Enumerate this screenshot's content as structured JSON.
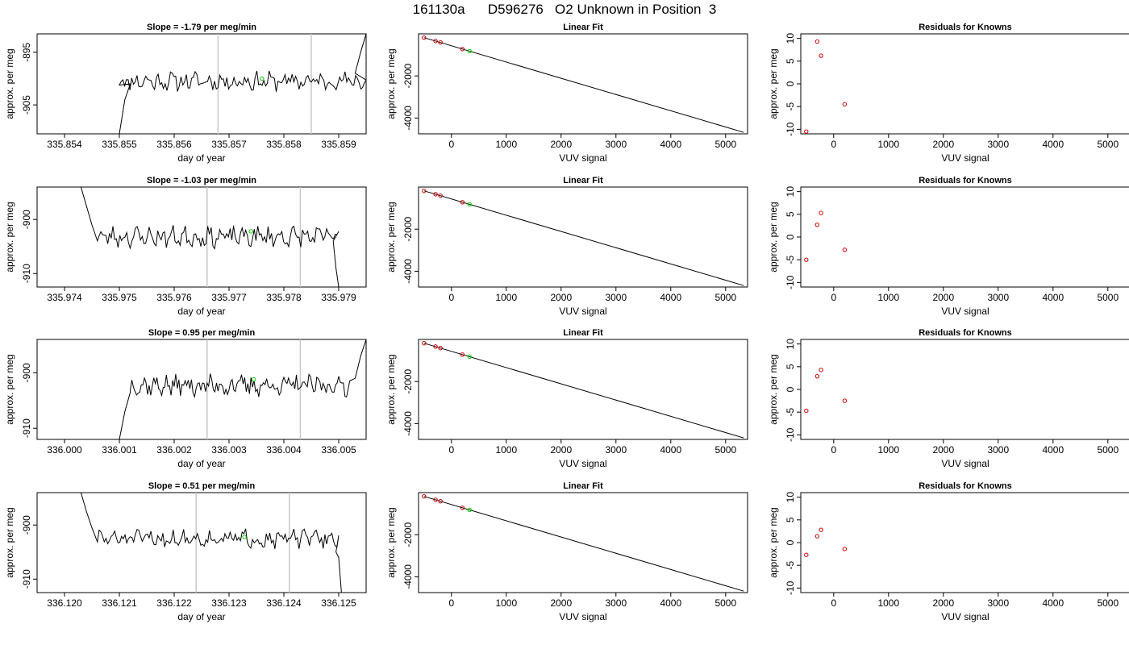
{
  "main_title": "161130a      D596276   O2 Unknown in Position  3",
  "chart_data": [
    {
      "type": "line",
      "panel": "time-series",
      "row": 0,
      "title": "Slope =  -1.79  per meg/min",
      "xlabel": "day of year",
      "ylabel": "approx. per meg",
      "xlim": [
        335.8535,
        335.8595
      ],
      "ylim": [
        -910.5,
        -891.5
      ],
      "xticks": [
        335.854,
        335.855,
        335.856,
        335.857,
        335.858,
        335.859
      ],
      "xtick_labels": [
        "335.854",
        "335.855",
        "335.856",
        "335.857",
        "335.858",
        "335.859"
      ],
      "yticks": [
        -895,
        -905
      ],
      "ytick_labels": [
        "-895",
        "-905"
      ],
      "vlines": [
        335.8568,
        335.8585
      ],
      "series_start": 335.855,
      "series_end": 335.8595,
      "baseline": -900.5,
      "amplitude": 1.4,
      "seed": 11,
      "edge_left": [
        [
          335.855,
          -910.5
        ],
        [
          335.8551,
          -904
        ],
        [
          335.8552,
          -901
        ]
      ],
      "edge_right": [
        [
          335.8593,
          -899
        ],
        [
          335.8594,
          -895
        ],
        [
          335.8595,
          -891.5
        ]
      ],
      "marker": {
        "x": 335.8576,
        "y": -900,
        "color": "#00cc00"
      },
      "grid": false
    },
    {
      "type": "line",
      "panel": "linear-fit",
      "row": 0,
      "title": "Linear Fit",
      "xlabel": "VUV signal",
      "ylabel": "approx. per meg",
      "xlim": [
        -600,
        5400
      ],
      "ylim": [
        -4750,
        0
      ],
      "xticks": [
        0,
        1000,
        2000,
        3000,
        4000,
        5000
      ],
      "xtick_labels": [
        "0",
        "1000",
        "2000",
        "3000",
        "4000",
        "5000"
      ],
      "yticks": [
        -2000,
        -4000
      ],
      "ytick_labels": [
        "-2000",
        "-4000"
      ],
      "fit_line": [
        [
          -500,
          -180
        ],
        [
          5330,
          -4680
        ]
      ],
      "known_points": [
        [
          -500,
          -180
        ],
        [
          -290,
          -340
        ],
        [
          -200,
          -410
        ],
        [
          200,
          -720
        ]
      ],
      "unknown_points": [
        [
          330,
          -820
        ]
      ],
      "grid": false
    },
    {
      "type": "scatter",
      "panel": "residuals",
      "row": 0,
      "title": "Residuals for Knowns",
      "xlabel": "VUV signal",
      "ylabel": "approx. per meg",
      "xlim": [
        -600,
        5400
      ],
      "ylim": [
        -11,
        11
      ],
      "xticks": [
        0,
        1000,
        2000,
        3000,
        4000,
        5000
      ],
      "xtick_labels": [
        "0",
        "1000",
        "2000",
        "3000",
        "4000",
        "5000"
      ],
      "yticks": [
        -10,
        -5,
        0,
        5,
        10
      ],
      "ytick_labels": [
        "-10",
        "-5",
        "0",
        "5",
        "10"
      ],
      "points": [
        [
          -500,
          -10.5
        ],
        [
          -300,
          9.3
        ],
        [
          -230,
          6.2
        ],
        [
          200,
          -4.5
        ]
      ],
      "grid": false
    },
    {
      "type": "line",
      "panel": "time-series",
      "row": 1,
      "title": "Slope =  -1.03  per meg/min",
      "xlabel": "day of year",
      "ylabel": "approx. per meg",
      "xlim": [
        335.9735,
        335.9795
      ],
      "ylim": [
        -912.5,
        -894
      ],
      "xticks": [
        335.974,
        335.975,
        335.976,
        335.977,
        335.978,
        335.979
      ],
      "xtick_labels": [
        "335.974",
        "335.975",
        "335.976",
        "335.977",
        "335.978",
        "335.979"
      ],
      "yticks": [
        -900,
        -910
      ],
      "ytick_labels": [
        "-900",
        "-910"
      ],
      "vlines": [
        335.9766,
        335.9783
      ],
      "series_start": 335.9746,
      "series_end": 335.979,
      "baseline": -903.2,
      "amplitude": 1.5,
      "seed": 23,
      "edge_left": [
        [
          335.9743,
          -894
        ],
        [
          335.9744,
          -897.5
        ],
        [
          335.9745,
          -901
        ]
      ],
      "edge_right": [
        [
          335.9789,
          -904
        ],
        [
          335.97895,
          -909
        ],
        [
          335.979,
          -912.5
        ]
      ],
      "marker": {
        "x": 335.9774,
        "y": -902.2,
        "color": "#00cc00"
      },
      "grid": false
    },
    {
      "type": "line",
      "panel": "linear-fit",
      "row": 1,
      "title": "Linear Fit",
      "xlabel": "VUV signal",
      "ylabel": "approx. per meg",
      "xlim": [
        -600,
        5400
      ],
      "ylim": [
        -4750,
        0
      ],
      "xticks": [
        0,
        1000,
        2000,
        3000,
        4000,
        5000
      ],
      "xtick_labels": [
        "0",
        "1000",
        "2000",
        "3000",
        "4000",
        "5000"
      ],
      "yticks": [
        -2000,
        -4000
      ],
      "ytick_labels": [
        "-2000",
        "-4000"
      ],
      "fit_line": [
        [
          -500,
          -180
        ],
        [
          5330,
          -4680
        ]
      ],
      "known_points": [
        [
          -500,
          -180
        ],
        [
          -290,
          -340
        ],
        [
          -200,
          -410
        ],
        [
          200,
          -720
        ]
      ],
      "unknown_points": [
        [
          330,
          -820
        ]
      ],
      "grid": false
    },
    {
      "type": "scatter",
      "panel": "residuals",
      "row": 1,
      "title": "Residuals for Knowns",
      "xlabel": "VUV signal",
      "ylabel": "approx. per meg",
      "xlim": [
        -600,
        5400
      ],
      "ylim": [
        -11,
        11
      ],
      "xticks": [
        0,
        1000,
        2000,
        3000,
        4000,
        5000
      ],
      "xtick_labels": [
        "0",
        "1000",
        "2000",
        "3000",
        "4000",
        "5000"
      ],
      "yticks": [
        -10,
        -5,
        0,
        5,
        10
      ],
      "ytick_labels": [
        "-10",
        "-5",
        "0",
        "5",
        "10"
      ],
      "points": [
        [
          -500,
          -5
        ],
        [
          -300,
          2.7
        ],
        [
          -230,
          5.3
        ],
        [
          200,
          -2.8
        ]
      ],
      "grid": false
    },
    {
      "type": "line",
      "panel": "time-series",
      "row": 2,
      "title": "Slope =  0.95  per meg/min",
      "xlabel": "day of year",
      "ylabel": "approx. per meg",
      "xlim": [
        335.9995,
        336.0055
      ],
      "ylim": [
        -912,
        -894
      ],
      "xticks": [
        336.0,
        336.001,
        336.002,
        336.003,
        336.004,
        336.005
      ],
      "xtick_labels": [
        "336.000",
        "336.001",
        "336.002",
        "336.003",
        "336.004",
        "336.005"
      ],
      "yticks": [
        -900,
        -910
      ],
      "ytick_labels": [
        "-900",
        "-910"
      ],
      "vlines": [
        336.0026,
        336.0043
      ],
      "series_start": 336.0012,
      "series_end": 336.0052,
      "baseline": -902.3,
      "amplitude": 1.5,
      "seed": 37,
      "edge_left": [
        [
          336.001,
          -912
        ],
        [
          336.0011,
          -907
        ],
        [
          336.0012,
          -903.5
        ]
      ],
      "edge_right": [
        [
          336.0053,
          -901
        ],
        [
          336.0054,
          -897
        ],
        [
          336.0055,
          -894
        ]
      ],
      "marker": {
        "x": 336.00345,
        "y": -901.2,
        "color": "#00cc00"
      },
      "grid": false
    },
    {
      "type": "line",
      "panel": "linear-fit",
      "row": 2,
      "title": "Linear Fit",
      "xlabel": "VUV signal",
      "ylabel": "approx. per meg",
      "xlim": [
        -600,
        5400
      ],
      "ylim": [
        -4750,
        0
      ],
      "xticks": [
        0,
        1000,
        2000,
        3000,
        4000,
        5000
      ],
      "xtick_labels": [
        "0",
        "1000",
        "2000",
        "3000",
        "4000",
        "5000"
      ],
      "yticks": [
        -2000,
        -4000
      ],
      "ytick_labels": [
        "-2000",
        "-4000"
      ],
      "fit_line": [
        [
          -500,
          -180
        ],
        [
          5330,
          -4680
        ]
      ],
      "known_points": [
        [
          -500,
          -180
        ],
        [
          -290,
          -340
        ],
        [
          -200,
          -410
        ],
        [
          200,
          -720
        ]
      ],
      "unknown_points": [
        [
          330,
          -820
        ]
      ],
      "grid": false
    },
    {
      "type": "scatter",
      "panel": "residuals",
      "row": 2,
      "title": "Residuals for Knowns",
      "xlabel": "VUV signal",
      "ylabel": "approx. per meg",
      "xlim": [
        -600,
        5400
      ],
      "ylim": [
        -11,
        11
      ],
      "xticks": [
        0,
        1000,
        2000,
        3000,
        4000,
        5000
      ],
      "xtick_labels": [
        "0",
        "1000",
        "2000",
        "3000",
        "4000",
        "5000"
      ],
      "yticks": [
        -10,
        -5,
        0,
        5,
        10
      ],
      "ytick_labels": [
        "-10",
        "-5",
        "0",
        "5",
        "10"
      ],
      "points": [
        [
          -500,
          -4.7
        ],
        [
          -300,
          2.9
        ],
        [
          -230,
          4.3
        ],
        [
          200,
          -2.5
        ]
      ],
      "grid": false
    },
    {
      "type": "line",
      "panel": "time-series",
      "row": 3,
      "title": "Slope =  0.51  per meg/min",
      "xlabel": "day of year",
      "ylabel": "approx. per meg",
      "xlim": [
        336.1195,
        336.1255
      ],
      "ylim": [
        -912.5,
        -894
      ],
      "xticks": [
        336.12,
        336.121,
        336.122,
        336.123,
        336.124,
        336.125
      ],
      "xtick_labels": [
        "336.120",
        "336.121",
        "336.122",
        "336.123",
        "336.124",
        "336.125"
      ],
      "yticks": [
        -900,
        -910
      ],
      "ytick_labels": [
        "-900",
        "-910"
      ],
      "vlines": [
        336.1224,
        336.1241
      ],
      "series_start": 336.1206,
      "series_end": 336.125,
      "baseline": -902.5,
      "amplitude": 1.3,
      "seed": 51,
      "edge_left": [
        [
          336.1203,
          -894
        ],
        [
          336.1204,
          -897.5
        ],
        [
          336.1205,
          -900.5
        ]
      ],
      "edge_right": [
        [
          336.12495,
          -905
        ],
        [
          336.125,
          -906
        ],
        [
          336.12505,
          -912.5
        ]
      ],
      "marker": {
        "x": 336.12328,
        "y": -902.2,
        "color": "#00cc00"
      },
      "grid": false
    },
    {
      "type": "line",
      "panel": "linear-fit",
      "row": 3,
      "title": "Linear Fit",
      "xlabel": "VUV signal",
      "ylabel": "approx. per meg",
      "xlim": [
        -600,
        5400
      ],
      "ylim": [
        -4750,
        0
      ],
      "xticks": [
        0,
        1000,
        2000,
        3000,
        4000,
        5000
      ],
      "xtick_labels": [
        "0",
        "1000",
        "2000",
        "3000",
        "4000",
        "5000"
      ],
      "yticks": [
        -2000,
        -4000
      ],
      "ytick_labels": [
        "-2000",
        "-4000"
      ],
      "fit_line": [
        [
          -500,
          -180
        ],
        [
          5330,
          -4680
        ]
      ],
      "known_points": [
        [
          -500,
          -180
        ],
        [
          -290,
          -340
        ],
        [
          -200,
          -410
        ],
        [
          200,
          -720
        ]
      ],
      "unknown_points": [
        [
          330,
          -820
        ]
      ],
      "grid": false
    },
    {
      "type": "scatter",
      "panel": "residuals",
      "row": 3,
      "title": "Residuals for Knowns",
      "xlabel": "VUV signal",
      "ylabel": "approx. per meg",
      "xlim": [
        -600,
        5400
      ],
      "ylim": [
        -11,
        11
      ],
      "xticks": [
        0,
        1000,
        2000,
        3000,
        4000,
        5000
      ],
      "xtick_labels": [
        "0",
        "1000",
        "2000",
        "3000",
        "4000",
        "5000"
      ],
      "yticks": [
        -10,
        -5,
        0,
        5,
        10
      ],
      "ytick_labels": [
        "-10",
        "-5",
        "0",
        "5",
        "10"
      ],
      "points": [
        [
          -500,
          -2.7
        ],
        [
          -300,
          1.4
        ],
        [
          -230,
          2.8
        ],
        [
          200,
          -1.4
        ]
      ],
      "grid": false
    }
  ],
  "colors": {
    "axis": "#000000",
    "line": "#000000",
    "vline": "#c8c8c8",
    "known_point": "#cc0000",
    "unknown_point": "#00cc00",
    "background": "#ffffff"
  }
}
